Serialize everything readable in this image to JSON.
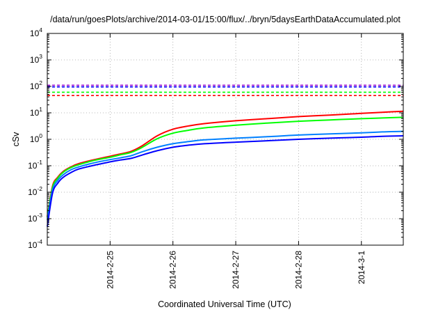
{
  "chart_data": {
    "type": "line",
    "title": "/data/run/goesPlots/archive/2014-03-01/15:00/flux/../bryn/5daysEarthDataAccumulated.plot",
    "xlabel": "Coordinated Universal Time (UTC)",
    "ylabel": "cSv",
    "yscale": "log",
    "ylim": [
      0.0001,
      10000
    ],
    "xlim_days": [
      "2014-02-24 00:00",
      "2014-03-01 16:00"
    ],
    "x_ticks": [
      {
        "date": "2014-02-25 00:00",
        "label": "2014-2-25"
      },
      {
        "date": "2014-02-26 00:00",
        "label": "2014-2-26"
      },
      {
        "date": "2014-02-27 00:00",
        "label": "2014-2-27"
      },
      {
        "date": "2014-02-28 00:00",
        "label": "2014-2-28"
      },
      {
        "date": "2014-03-01 00:00",
        "label": "2014-3-1"
      }
    ],
    "y_ticks": [
      {
        "value": 0.0001,
        "base": "10",
        "exp": "-4"
      },
      {
        "value": 0.001,
        "base": "10",
        "exp": "-3"
      },
      {
        "value": 0.01,
        "base": "10",
        "exp": "-2"
      },
      {
        "value": 0.1,
        "base": "10",
        "exp": "-1"
      },
      {
        "value": 1,
        "base": "10",
        "exp": "0"
      },
      {
        "value": 10,
        "base": "10",
        "exp": "1"
      },
      {
        "value": 100,
        "base": "10",
        "exp": "2"
      },
      {
        "value": 1000,
        "base": "10",
        "exp": "3"
      },
      {
        "value": 10000,
        "base": "10",
        "exp": "4"
      }
    ],
    "grid": true,
    "series": [
      {
        "color": "#ff0000",
        "x": [
          "2014-02-24 00:00",
          "2014-02-24 02:00",
          "2014-02-24 04:00",
          "2014-02-24 06:00",
          "2014-02-24 09:00",
          "2014-02-24 12:00",
          "2014-02-24 18:00",
          "2014-02-25 00:00",
          "2014-02-25 04:00",
          "2014-02-25 08:00",
          "2014-02-25 12:00",
          "2014-02-25 18:00",
          "2014-02-26 00:00",
          "2014-02-26 06:00",
          "2014-02-26 12:00",
          "2014-02-27 00:00",
          "2014-02-27 12:00",
          "2014-02-28 00:00",
          "2014-02-28 12:00",
          "2014-03-01 00:00",
          "2014-03-01 08:00",
          "2014-03-01 16:00"
        ],
        "y": [
          0.0012,
          0.017,
          0.037,
          0.06,
          0.09,
          0.12,
          0.17,
          0.23,
          0.28,
          0.35,
          0.55,
          1.35,
          2.4,
          3.2,
          3.9,
          5.0,
          6.0,
          7.2,
          8.2,
          9.5,
          10.5,
          11.5
        ]
      },
      {
        "color": "#00ff00",
        "x": [
          "2014-02-24 00:00",
          "2014-02-24 02:00",
          "2014-02-24 04:00",
          "2014-02-24 06:00",
          "2014-02-24 09:00",
          "2014-02-24 12:00",
          "2014-02-24 18:00",
          "2014-02-25 00:00",
          "2014-02-25 04:00",
          "2014-02-25 08:00",
          "2014-02-25 12:00",
          "2014-02-25 18:00",
          "2014-02-26 00:00",
          "2014-02-26 06:00",
          "2014-02-26 12:00",
          "2014-02-27 00:00",
          "2014-02-27 12:00",
          "2014-02-28 00:00",
          "2014-02-28 12:00",
          "2014-03-01 00:00",
          "2014-03-01 08:00",
          "2014-03-01 16:00"
        ],
        "y": [
          0.0011,
          0.015,
          0.034,
          0.056,
          0.085,
          0.11,
          0.16,
          0.21,
          0.26,
          0.32,
          0.48,
          1.05,
          1.7,
          2.2,
          2.7,
          3.4,
          4.1,
          4.8,
          5.4,
          6.0,
          6.4,
          6.8
        ]
      },
      {
        "color": "#0080ff",
        "x": [
          "2014-02-24 00:00",
          "2014-02-24 02:00",
          "2014-02-24 04:00",
          "2014-02-24 06:00",
          "2014-02-24 09:00",
          "2014-02-24 12:00",
          "2014-02-24 18:00",
          "2014-02-25 00:00",
          "2014-02-25 04:00",
          "2014-02-25 08:00",
          "2014-02-25 12:00",
          "2014-02-25 18:00",
          "2014-02-26 00:00",
          "2014-02-26 06:00",
          "2014-02-26 12:00",
          "2014-02-27 00:00",
          "2014-02-27 12:00",
          "2014-02-28 00:00",
          "2014-02-28 12:00",
          "2014-03-01 00:00",
          "2014-03-01 08:00",
          "2014-03-01 16:00"
        ],
        "y": [
          0.0009,
          0.012,
          0.028,
          0.045,
          0.07,
          0.09,
          0.13,
          0.17,
          0.2,
          0.24,
          0.33,
          0.5,
          0.68,
          0.82,
          0.95,
          1.1,
          1.25,
          1.45,
          1.6,
          1.75,
          1.9,
          2.0
        ]
      },
      {
        "color": "#0000ff",
        "x": [
          "2014-02-24 00:00",
          "2014-02-24 02:00",
          "2014-02-24 04:00",
          "2014-02-24 06:00",
          "2014-02-24 09:00",
          "2014-02-24 12:00",
          "2014-02-24 18:00",
          "2014-02-25 00:00",
          "2014-02-25 04:00",
          "2014-02-25 08:00",
          "2014-02-25 12:00",
          "2014-02-25 18:00",
          "2014-02-26 00:00",
          "2014-02-26 06:00",
          "2014-02-26 12:00",
          "2014-02-27 00:00",
          "2014-02-27 12:00",
          "2014-02-28 00:00",
          "2014-02-28 12:00",
          "2014-03-01 00:00",
          "2014-03-01 08:00",
          "2014-03-01 16:00"
        ],
        "y": [
          0.0005,
          0.009,
          0.022,
          0.036,
          0.055,
          0.075,
          0.105,
          0.14,
          0.165,
          0.19,
          0.25,
          0.37,
          0.5,
          0.6,
          0.68,
          0.78,
          0.88,
          1.0,
          1.1,
          1.2,
          1.3,
          1.35
        ]
      }
    ],
    "threshold_lines": [
      {
        "color": "#9400d3",
        "value": 110
      },
      {
        "color": "#0000ff",
        "value": 95
      },
      {
        "color": "#00ff00",
        "value": 60
      },
      {
        "color": "#ff0000",
        "value": 45
      }
    ]
  }
}
